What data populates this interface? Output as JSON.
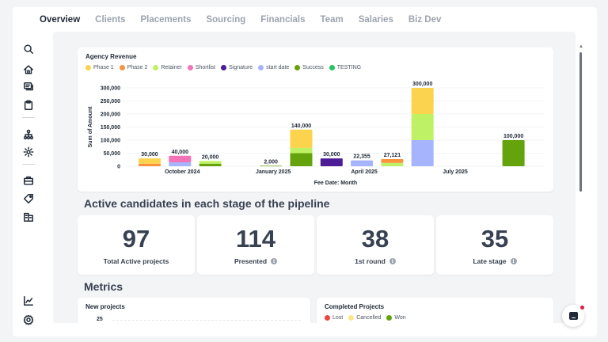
{
  "tabs": [
    {
      "label": "Overview",
      "active": true
    },
    {
      "label": "Clients"
    },
    {
      "label": "Placements"
    },
    {
      "label": "Sourcing"
    },
    {
      "label": "Financials"
    },
    {
      "label": "Team"
    },
    {
      "label": "Salaries"
    },
    {
      "label": "Biz Dev"
    }
  ],
  "sidebar": {
    "icons": [
      "search-icon",
      "home-icon",
      "messages-icon",
      "clipboard-icon",
      "org-chart-icon",
      "settings-icon",
      "briefcase-icon",
      "tag-icon",
      "buildings-icon",
      "analytics-icon",
      "gear-icon"
    ]
  },
  "revenue": {
    "title": "Agency Revenue",
    "legend": [
      {
        "label": "Phase 1",
        "color": "#fcd34d"
      },
      {
        "label": "Phase 2",
        "color": "#fb923c"
      },
      {
        "label": "Retainer",
        "color": "#bef264"
      },
      {
        "label": "Shortlist",
        "color": "#f472b6"
      },
      {
        "label": "Signature",
        "color": "#4c1d95"
      },
      {
        "label": "start date",
        "color": "#a5b4fc"
      },
      {
        "label": "Success",
        "color": "#65a30d"
      },
      {
        "label": "TESTING",
        "color": "#22c55e"
      }
    ]
  },
  "chart_data": {
    "type": "bar",
    "stacked": true,
    "title": "Agency Revenue",
    "xlabel": "Fee Date: Month",
    "ylabel": "Sum of Amount",
    "ylim": [
      0,
      300000
    ],
    "yticks": [
      "300,000",
      "250,000",
      "200,000",
      "150,000",
      "100,000",
      "50,000",
      "0"
    ],
    "xticks": [
      "October 2024",
      "January 2025",
      "April 2025",
      "July 2025"
    ],
    "legend_position": "top-left",
    "grid": true,
    "bars": [
      {
        "slot": 0,
        "total_label": "30,000",
        "segments": [
          {
            "series": "Phase 2",
            "value": 10000
          },
          {
            "series": "Phase 1",
            "value": 20000
          }
        ]
      },
      {
        "slot": 1,
        "total_label": "40,000",
        "segments": [
          {
            "series": "start date",
            "value": 15000
          },
          {
            "series": "Shortlist",
            "value": 25000
          }
        ]
      },
      {
        "slot": 2,
        "total_label": "20,000",
        "segments": [
          {
            "series": "Success",
            "value": 10000
          },
          {
            "series": "Retainer",
            "value": 10000
          }
        ]
      },
      {
        "slot": 4,
        "total_label": "2,000",
        "segments": [
          {
            "series": "Success",
            "value": 2000
          }
        ]
      },
      {
        "slot": 5,
        "total_label": "140,000",
        "segments": [
          {
            "series": "Success",
            "value": 50000
          },
          {
            "series": "Retainer",
            "value": 20000
          },
          {
            "series": "Phase 1",
            "value": 70000
          }
        ]
      },
      {
        "slot": 6,
        "total_label": "30,000",
        "segments": [
          {
            "series": "Signature",
            "value": 30000
          }
        ]
      },
      {
        "slot": 7,
        "total_label": "22,355",
        "segments": [
          {
            "series": "start date",
            "value": 22355
          }
        ]
      },
      {
        "slot": 8,
        "total_label": "27,121",
        "segments": [
          {
            "series": "Retainer",
            "value": 13000
          },
          {
            "series": "Phase 2",
            "value": 14121
          }
        ]
      },
      {
        "slot": 9,
        "total_label": "300,000",
        "segments": [
          {
            "series": "start date",
            "value": 100000
          },
          {
            "series": "Retainer",
            "value": 100000
          },
          {
            "series": "Phase 1",
            "value": 100000
          }
        ]
      },
      {
        "slot": 12,
        "total_label": "100,000",
        "segments": [
          {
            "series": "Success",
            "value": 100000
          }
        ]
      }
    ]
  },
  "pipeline": {
    "title": "Active candidates in each stage of the pipeline",
    "cards": [
      {
        "value": "97",
        "label": "Total Active projects",
        "info": false
      },
      {
        "value": "114",
        "label": "Presented",
        "info": true
      },
      {
        "value": "38",
        "label": "1st round",
        "info": true
      },
      {
        "value": "35",
        "label": "Late stage",
        "info": true
      }
    ]
  },
  "metrics": {
    "title": "Metrics",
    "new_projects": {
      "title": "New projects",
      "axis_top": "25"
    },
    "completed_projects": {
      "title": "Completed Projects",
      "legend": [
        {
          "label": "Lost",
          "color": "#ef4444"
        },
        {
          "label": "Cancelled",
          "color": "#fde68a"
        },
        {
          "label": "Won",
          "color": "#65a30d"
        }
      ]
    }
  },
  "info_glyph": "i"
}
